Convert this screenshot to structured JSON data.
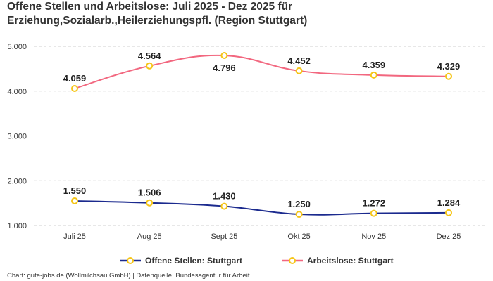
{
  "chart_data": {
    "type": "line",
    "title_line1": "Offene Stellen und Arbeitslose: Juli 2025 - Dez 2025 für",
    "title_line2": "Erziehung,Sozialarb.,Heilerziehungspfl. (Region Stuttgart)",
    "categories": [
      "Juli 25",
      "Aug 25",
      "Sept 25",
      "Okt 25",
      "Nov 25",
      "Dez 25"
    ],
    "y_ticks": [
      1000,
      2000,
      3000,
      4000,
      5000
    ],
    "y_tick_labels": [
      "1.000",
      "2.000",
      "3.000",
      "4.000",
      "5.000"
    ],
    "ylim": [
      1000,
      5000
    ],
    "grid": true,
    "legend_placement": "bottom",
    "series": [
      {
        "name": "Offene Stellen: Stuttgart",
        "color": "#1b2a8e",
        "values": [
          1550,
          1506,
          1430,
          1250,
          1272,
          1284
        ],
        "labels": [
          "1.550",
          "1.506",
          "1.430",
          "1.250",
          "1.272",
          "1.284"
        ]
      },
      {
        "name": "Arbeitslose: Stuttgart",
        "color": "#f2677f",
        "values": [
          4059,
          4564,
          4796,
          4452,
          4359,
          4329
        ],
        "labels": [
          "4.059",
          "4.564",
          "4.796",
          "4.452",
          "4.359",
          "4.329"
        ]
      }
    ],
    "marker_color": "#f5c518"
  },
  "footer": "Chart: gute-jobs.de (Wollmilchsau GmbH) | Datenquelle: Bundesagentur für Arbeit"
}
